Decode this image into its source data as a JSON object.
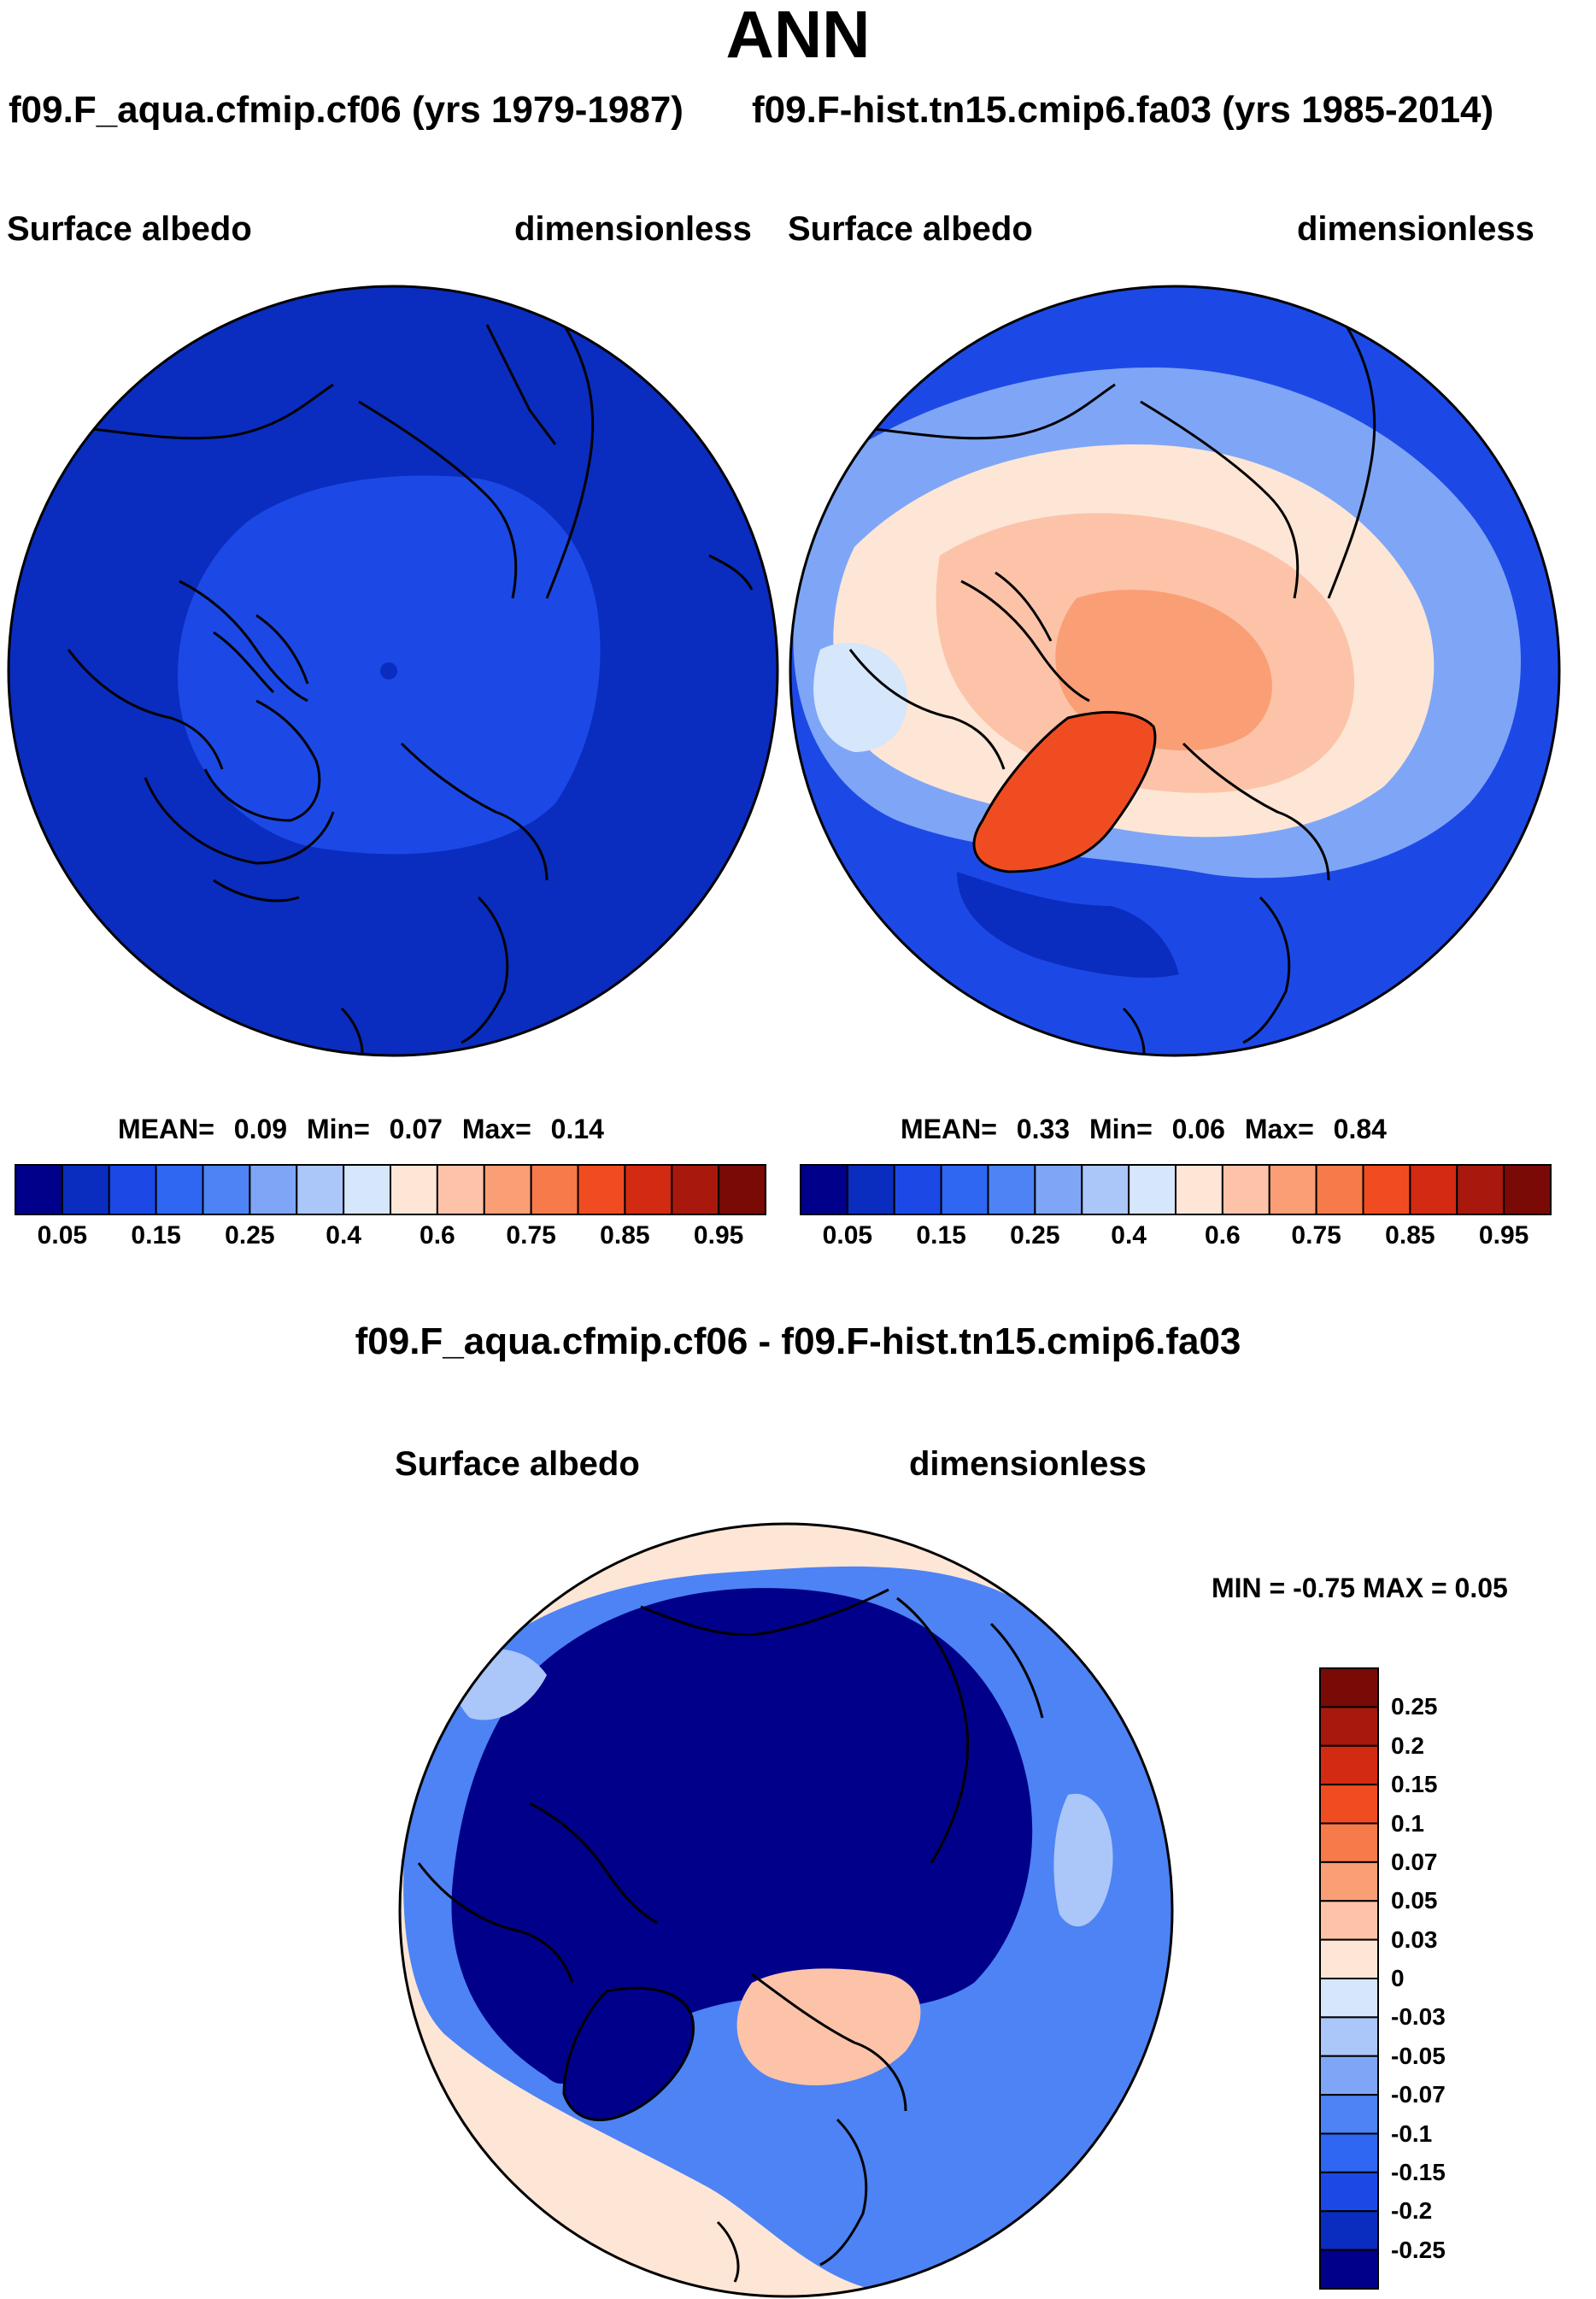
{
  "title": "ANN",
  "panels": {
    "left": {
      "case_title": "f09.F_aqua.cfmip.cf06 (yrs 1979-1987)",
      "variable": "Surface albedo",
      "units": "dimensionless",
      "stats": {
        "mean_label": "MEAN=",
        "mean": "0.09",
        "min_label": "Min=",
        "min": "0.07",
        "max_label": "Max=",
        "max": "0.14"
      }
    },
    "right": {
      "case_title": "f09.F-hist.tn15.cmip6.fa03 (yrs 1985-2014)",
      "variable": "Surface albedo",
      "units": "dimensionless",
      "stats": {
        "mean_label": "MEAN=",
        "mean": "0.33",
        "min_label": "Min=",
        "min": "0.06",
        "max_label": "Max=",
        "max": "0.84"
      }
    },
    "diff": {
      "title": "f09.F_aqua.cfmip.cf06 - f09.F-hist.tn15.cmip6.fa03",
      "variable": "Surface albedo",
      "units": "dimensionless",
      "minmax": "MIN =  -0.75 MAX =   0.05"
    }
  },
  "chart_data": [
    {
      "type": "heatmap",
      "projection": "north polar stereographic",
      "title": "Surface albedo",
      "colorbar": {
        "ticks": [
          "0.05",
          "0.15",
          "0.25",
          "0.4",
          "0.6",
          "0.75",
          "0.85",
          "0.95"
        ],
        "levels": [
          0.05,
          0.1,
          0.15,
          0.2,
          0.25,
          0.3,
          0.4,
          0.5,
          0.6,
          0.7,
          0.75,
          0.8,
          0.85,
          0.9,
          0.95
        ],
        "colors": [
          "#00008a",
          "#0a2dbf",
          "#1c49e6",
          "#2f66f2",
          "#4d83f4",
          "#7fa6f6",
          "#abc6f8",
          "#d6e6fb",
          "#fde6d6",
          "#fcc3a8",
          "#fa9e76",
          "#f77a4a",
          "#ef4d21",
          "#d32a12",
          "#a8180c",
          "#7a0a05"
        ]
      },
      "field_summary": {
        "mean": 0.09,
        "min": 0.07,
        "max": 0.14
      }
    },
    {
      "type": "heatmap",
      "projection": "north polar stereographic",
      "title": "Surface albedo",
      "colorbar": {
        "ticks": [
          "0.05",
          "0.15",
          "0.25",
          "0.4",
          "0.6",
          "0.75",
          "0.85",
          "0.95"
        ],
        "levels": [
          0.05,
          0.1,
          0.15,
          0.2,
          0.25,
          0.3,
          0.4,
          0.5,
          0.6,
          0.7,
          0.75,
          0.8,
          0.85,
          0.9,
          0.95
        ],
        "colors": [
          "#00008a",
          "#0a2dbf",
          "#1c49e6",
          "#2f66f2",
          "#4d83f4",
          "#7fa6f6",
          "#abc6f8",
          "#d6e6fb",
          "#fde6d6",
          "#fcc3a8",
          "#fa9e76",
          "#f77a4a",
          "#ef4d21",
          "#d32a12",
          "#a8180c",
          "#7a0a05"
        ]
      },
      "field_summary": {
        "mean": 0.33,
        "min": 0.06,
        "max": 0.84
      }
    },
    {
      "type": "heatmap",
      "projection": "north polar stereographic",
      "title": "f09.F_aqua.cfmip.cf06 - f09.F-hist.tn15.cmip6.fa03",
      "colorbar": {
        "ticks": [
          "0.25",
          "0.2",
          "0.15",
          "0.1",
          "0.07",
          "0.05",
          "0.03",
          "0",
          "-0.03",
          "-0.05",
          "-0.07",
          "-0.1",
          "-0.15",
          "-0.2",
          "-0.25"
        ],
        "colors": [
          "#7a0a05",
          "#a8180c",
          "#d32a12",
          "#ef4d21",
          "#f77a4a",
          "#fa9e76",
          "#fcc3a8",
          "#fde6d6",
          "#d6e6fb",
          "#abc6f8",
          "#7fa6f6",
          "#4d83f4",
          "#2f66f2",
          "#1c49e6",
          "#0a2dbf",
          "#00008a"
        ]
      },
      "field_summary": {
        "min": -0.75,
        "max": 0.05
      }
    }
  ]
}
